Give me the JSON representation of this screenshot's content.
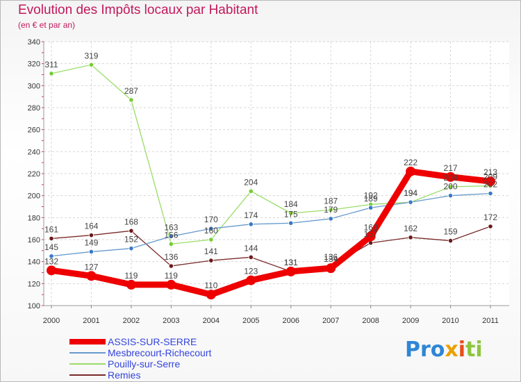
{
  "title": "Evolution des Impôts locaux par Habitant",
  "subtitle": "(en € et par an)",
  "logo": {
    "p1": "Pro",
    "p2": "x",
    "p3": "i",
    "p4": "ti"
  },
  "chart_data": {
    "type": "line",
    "categories": [
      "2000",
      "2001",
      "2002",
      "2003",
      "2004",
      "2005",
      "2006",
      "2007",
      "2008",
      "2009",
      "2010",
      "2011"
    ],
    "ylim": [
      100,
      340
    ],
    "yticks": [
      "100",
      "120",
      "140",
      "160",
      "180",
      "200",
      "220",
      "240",
      "260",
      "280",
      "300",
      "320",
      "340"
    ],
    "grid": true,
    "legend_position": "bottom-left",
    "series": [
      {
        "name": "ASSIS-SUR-SERRE",
        "color": "#ee0000",
        "values": [
          132,
          127,
          119,
          119,
          110,
          123,
          131,
          134,
          163,
          222,
          217,
          213
        ],
        "labels": [
          "132",
          "127",
          "119",
          "119",
          "110",
          "123",
          "131",
          "134",
          "163",
          "222",
          "217",
          "213"
        ]
      },
      {
        "name": "Mesbrecourt-Richecourt",
        "color": "#6699cc",
        "point_color": "#3a78c4",
        "values": [
          145,
          149,
          152,
          163,
          170,
          174,
          175,
          179,
          189,
          194,
          200,
          202
        ],
        "labels": [
          "145",
          "149",
          "152",
          "163",
          "170",
          "174",
          "175",
          "179",
          "189",
          "194",
          "200",
          "202"
        ]
      },
      {
        "name": "Pouilly-sur-Serre",
        "color": "#99dd66",
        "point_color": "#77cc33",
        "values": [
          311,
          319,
          287,
          156,
          160,
          204,
          184,
          187,
          192,
          194,
          208,
          209
        ],
        "labels": [
          "311",
          "319",
          "287",
          "156",
          "160",
          "204",
          "184",
          "187",
          "192",
          "194",
          "208",
          "209"
        ]
      },
      {
        "name": "Remies",
        "color": "#7a2a2a",
        "point_color": "#6b1a1a",
        "values": [
          161,
          164,
          168,
          136,
          141,
          144,
          131,
          136,
          157,
          162,
          159,
          172
        ],
        "labels": [
          "161",
          "164",
          "168",
          "136",
          "141",
          "144",
          "131",
          "136",
          "157",
          "162",
          "159",
          "172"
        ]
      }
    ]
  }
}
